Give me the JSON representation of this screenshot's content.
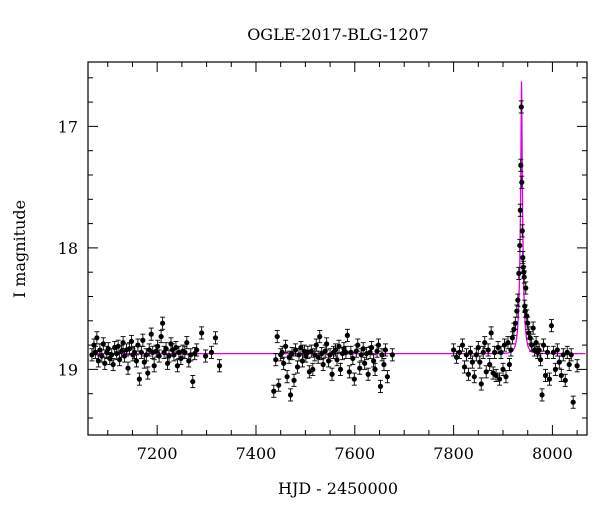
{
  "chart_data": {
    "type": "scatter",
    "title": "OGLE-2017-BLG-1207",
    "xlabel": "HJD - 2450000",
    "ylabel": "I magnitude",
    "xlim": [
      7060,
      8070
    ],
    "ylim": [
      19.54,
      16.47
    ],
    "y_inverted": true,
    "xticks": [
      7200,
      7400,
      7600,
      7800,
      8000
    ],
    "yticks": [
      17,
      18,
      19
    ],
    "grid": false,
    "colors": {
      "points": "#000000",
      "model": "#e000e0",
      "frame": "#000000"
    },
    "model": {
      "name": "",
      "baseline": 18.87,
      "peak_time": 7937.5,
      "peak_mag": 16.63,
      "tE": 6.5
    },
    "series": [
      {
        "type": "errorbar-points",
        "points": [
          [
            7068,
            18.88,
            0.05
          ],
          [
            7072,
            18.8,
            0.05
          ],
          [
            7075,
            18.86,
            0.05
          ],
          [
            7078,
            18.74,
            0.05
          ],
          [
            7081,
            18.93,
            0.05
          ],
          [
            7084,
            18.84,
            0.05
          ],
          [
            7088,
            18.89,
            0.05
          ],
          [
            7091,
            18.79,
            0.05
          ],
          [
            7094,
            18.95,
            0.05
          ],
          [
            7098,
            18.86,
            0.05
          ],
          [
            7101,
            18.83,
            0.05
          ],
          [
            7104,
            18.91,
            0.05
          ],
          [
            7108,
            18.88,
            0.05
          ],
          [
            7111,
            18.96,
            0.05
          ],
          [
            7114,
            18.82,
            0.05
          ],
          [
            7118,
            18.87,
            0.05
          ],
          [
            7121,
            18.81,
            0.05
          ],
          [
            7124,
            18.92,
            0.05
          ],
          [
            7128,
            18.85,
            0.05
          ],
          [
            7131,
            18.78,
            0.05
          ],
          [
            7134,
            18.89,
            0.05
          ],
          [
            7138,
            18.84,
            0.05
          ],
          [
            7141,
            18.99,
            0.05
          ],
          [
            7144,
            18.83,
            0.05
          ],
          [
            7148,
            18.77,
            0.05
          ],
          [
            7151,
            18.88,
            0.05
          ],
          [
            7154,
            18.86,
            0.05
          ],
          [
            7158,
            18.93,
            0.05
          ],
          [
            7161,
            18.8,
            0.05
          ],
          [
            7164,
            19.08,
            0.05
          ],
          [
            7168,
            18.86,
            0.05
          ],
          [
            7171,
            18.76,
            0.05
          ],
          [
            7174,
            18.94,
            0.05
          ],
          [
            7178,
            18.88,
            0.05
          ],
          [
            7181,
            19.03,
            0.05
          ],
          [
            7184,
            18.84,
            0.05
          ],
          [
            7188,
            18.71,
            0.05
          ],
          [
            7191,
            18.86,
            0.05
          ],
          [
            7194,
            18.97,
            0.05
          ],
          [
            7198,
            18.85,
            0.05
          ],
          [
            7201,
            18.81,
            0.05
          ],
          [
            7204,
            18.89,
            0.05
          ],
          [
            7208,
            18.73,
            0.05
          ],
          [
            7211,
            18.62,
            0.05
          ],
          [
            7214,
            18.86,
            0.05
          ],
          [
            7218,
            18.83,
            0.05
          ],
          [
            7221,
            18.95,
            0.05
          ],
          [
            7224,
            18.89,
            0.05
          ],
          [
            7228,
            18.79,
            0.05
          ],
          [
            7231,
            18.84,
            0.05
          ],
          [
            7234,
            18.88,
            0.05
          ],
          [
            7238,
            18.82,
            0.05
          ],
          [
            7241,
            18.97,
            0.05
          ],
          [
            7244,
            18.86,
            0.05
          ],
          [
            7248,
            18.91,
            0.05
          ],
          [
            7252,
            18.85,
            0.05
          ],
          [
            7256,
            18.86,
            0.05
          ],
          [
            7260,
            18.78,
            0.05
          ],
          [
            7264,
            18.93,
            0.05
          ],
          [
            7268,
            18.88,
            0.05
          ],
          [
            7272,
            19.1,
            0.05
          ],
          [
            7276,
            18.87,
            0.05
          ],
          [
            7280,
            18.84,
            0.05
          ],
          [
            7290,
            18.7,
            0.05
          ],
          [
            7298,
            18.89,
            0.05
          ],
          [
            7310,
            18.86,
            0.05
          ],
          [
            7318,
            18.74,
            0.05
          ],
          [
            7326,
            18.97,
            0.05
          ],
          [
            7436,
            19.18,
            0.05
          ],
          [
            7440,
            18.92,
            0.05
          ],
          [
            7443,
            18.73,
            0.05
          ],
          [
            7446,
            19.13,
            0.05
          ],
          [
            7450,
            18.88,
            0.05
          ],
          [
            7453,
            18.86,
            0.05
          ],
          [
            7456,
            18.95,
            0.05
          ],
          [
            7460,
            18.81,
            0.05
          ],
          [
            7463,
            19.06,
            0.05
          ],
          [
            7467,
            18.9,
            0.05
          ],
          [
            7470,
            19.21,
            0.05
          ],
          [
            7473,
            18.87,
            0.05
          ],
          [
            7477,
            19.09,
            0.05
          ],
          [
            7480,
            18.84,
            0.05
          ],
          [
            7484,
            18.98,
            0.05
          ],
          [
            7487,
            18.88,
            0.05
          ],
          [
            7491,
            18.82,
            0.05
          ],
          [
            7494,
            18.93,
            0.05
          ],
          [
            7498,
            18.85,
            0.05
          ],
          [
            7501,
            18.89,
            0.05
          ],
          [
            7505,
            18.86,
            0.05
          ],
          [
            7508,
            19.02,
            0.05
          ],
          [
            7512,
            18.85,
            0.05
          ],
          [
            7515,
            19.0,
            0.05
          ],
          [
            7519,
            18.88,
            0.05
          ],
          [
            7522,
            18.8,
            0.05
          ],
          [
            7526,
            18.9,
            0.05
          ],
          [
            7529,
            18.73,
            0.05
          ],
          [
            7533,
            18.87,
            0.05
          ],
          [
            7536,
            18.96,
            0.05
          ],
          [
            7540,
            18.85,
            0.05
          ],
          [
            7543,
            18.79,
            0.05
          ],
          [
            7547,
            18.93,
            0.05
          ],
          [
            7550,
            18.88,
            0.05
          ],
          [
            7554,
            19.04,
            0.05
          ],
          [
            7557,
            18.86,
            0.05
          ],
          [
            7561,
            18.84,
            0.05
          ],
          [
            7564,
            18.92,
            0.05
          ],
          [
            7568,
            18.81,
            0.05
          ],
          [
            7571,
            19.0,
            0.05
          ],
          [
            7575,
            18.87,
            0.05
          ],
          [
            7578,
            18.83,
            0.05
          ],
          [
            7582,
            18.86,
            0.05
          ],
          [
            7585,
            18.72,
            0.05
          ],
          [
            7589,
            19.02,
            0.05
          ],
          [
            7592,
            18.86,
            0.05
          ],
          [
            7596,
            18.91,
            0.05
          ],
          [
            7599,
            19.08,
            0.05
          ],
          [
            7603,
            18.85,
            0.05
          ],
          [
            7606,
            18.8,
            0.05
          ],
          [
            7610,
            18.99,
            0.05
          ],
          [
            7613,
            18.88,
            0.05
          ],
          [
            7617,
            18.83,
            0.05
          ],
          [
            7620,
            18.95,
            0.05
          ],
          [
            7624,
            18.87,
            0.05
          ],
          [
            7627,
            19.04,
            0.05
          ],
          [
            7631,
            18.86,
            0.05
          ],
          [
            7634,
            18.82,
            0.05
          ],
          [
            7638,
            18.93,
            0.05
          ],
          [
            7641,
            19.0,
            0.05
          ],
          [
            7645,
            18.85,
            0.05
          ],
          [
            7648,
            18.8,
            0.05
          ],
          [
            7652,
            19.14,
            0.05
          ],
          [
            7655,
            18.88,
            0.05
          ],
          [
            7659,
            18.96,
            0.05
          ],
          [
            7662,
            18.84,
            0.05
          ],
          [
            7666,
            19.06,
            0.05
          ],
          [
            7676,
            18.88,
            0.05
          ],
          [
            7800,
            18.84,
            0.05
          ],
          [
            7806,
            18.9,
            0.05
          ],
          [
            7812,
            18.86,
            0.05
          ],
          [
            7818,
            18.8,
            0.05
          ],
          [
            7822,
            18.98,
            0.05
          ],
          [
            7826,
            18.88,
            0.05
          ],
          [
            7830,
            19.04,
            0.05
          ],
          [
            7834,
            18.86,
            0.05
          ],
          [
            7838,
            18.94,
            0.05
          ],
          [
            7842,
            19.06,
            0.05
          ],
          [
            7846,
            18.88,
            0.05
          ],
          [
            7850,
            18.82,
            0.05
          ],
          [
            7853,
            18.94,
            0.05
          ],
          [
            7856,
            19.12,
            0.05
          ],
          [
            7860,
            18.86,
            0.05
          ],
          [
            7863,
            18.78,
            0.05
          ],
          [
            7866,
            19.02,
            0.05
          ],
          [
            7870,
            18.84,
            0.05
          ],
          [
            7873,
            18.96,
            0.05
          ],
          [
            7876,
            18.7,
            0.05
          ],
          [
            7880,
            19.03,
            0.05
          ],
          [
            7883,
            18.86,
            0.05
          ],
          [
            7886,
            19.05,
            0.05
          ],
          [
            7890,
            18.82,
            0.05
          ],
          [
            7893,
            19.08,
            0.05
          ],
          [
            7896,
            18.86,
            0.05
          ],
          [
            7900,
            19.0,
            0.05
          ],
          [
            7903,
            18.8,
            0.05
          ],
          [
            7906,
            19.06,
            0.05
          ],
          [
            7910,
            18.78,
            0.05
          ],
          [
            7913,
            18.96,
            0.05
          ],
          [
            7916,
            18.84,
            0.05
          ],
          [
            7919,
            18.74,
            0.05
          ],
          [
            7922,
            18.67,
            0.05
          ],
          [
            7925,
            18.62,
            0.05
          ],
          [
            7928,
            18.52,
            0.05
          ],
          [
            7930,
            18.43,
            0.05
          ],
          [
            7932,
            18.21,
            0.05
          ],
          [
            7934,
            17.98,
            0.05
          ],
          [
            7935,
            17.69,
            0.05
          ],
          [
            7936,
            17.32,
            0.05
          ],
          [
            7937,
            16.84,
            0.05
          ],
          [
            7938,
            17.46,
            0.05
          ],
          [
            7939,
            17.86,
            0.05
          ],
          [
            7940,
            18.08,
            0.05
          ],
          [
            7941,
            18.16,
            0.05
          ],
          [
            7942,
            18.2,
            0.05
          ],
          [
            7943,
            18.24,
            0.05
          ],
          [
            7944,
            18.48,
            0.05
          ],
          [
            7945,
            18.52,
            0.05
          ],
          [
            7946,
            18.33,
            0.05
          ],
          [
            7948,
            18.56,
            0.05
          ],
          [
            7950,
            18.62,
            0.05
          ],
          [
            7952,
            18.7,
            0.05
          ],
          [
            7955,
            18.74,
            0.05
          ],
          [
            7958,
            18.8,
            0.05
          ],
          [
            7961,
            18.66,
            0.05
          ],
          [
            7964,
            18.84,
            0.05
          ],
          [
            7967,
            18.78,
            0.05
          ],
          [
            7970,
            18.86,
            0.05
          ],
          [
            7973,
            18.84,
            0.05
          ],
          [
            7976,
            18.92,
            0.05
          ],
          [
            7979,
            19.21,
            0.05
          ],
          [
            7982,
            18.8,
            0.05
          ],
          [
            7986,
            19.05,
            0.05
          ],
          [
            7990,
            18.86,
            0.05
          ],
          [
            7994,
            19.08,
            0.05
          ],
          [
            7998,
            18.64,
            0.05
          ],
          [
            8002,
            18.86,
            0.05
          ],
          [
            8006,
            19.0,
            0.05
          ],
          [
            8010,
            18.84,
            0.05
          ],
          [
            8014,
            18.94,
            0.05
          ],
          [
            8018,
            19.05,
            0.05
          ],
          [
            8022,
            18.88,
            0.05
          ],
          [
            8026,
            19.09,
            0.05
          ],
          [
            8030,
            18.86,
            0.05
          ],
          [
            8034,
            18.96,
            0.05
          ],
          [
            8038,
            18.88,
            0.05
          ],
          [
            8042,
            19.27,
            0.05
          ],
          [
            8050,
            18.97,
            0.05
          ]
        ]
      }
    ]
  }
}
